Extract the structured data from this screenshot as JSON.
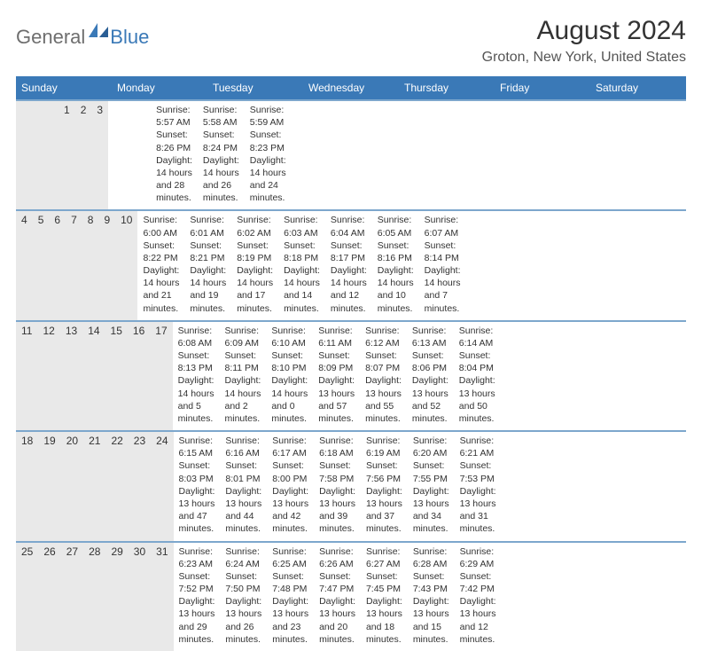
{
  "logo": {
    "text1": "General",
    "text2": "Blue"
  },
  "title": "August 2024",
  "location": "Groton, New York, United States",
  "colors": {
    "header_bg": "#3a79b7",
    "header_text": "#ffffff",
    "daynum_bg": "#e9e9e9",
    "week_border": "#7da7cd",
    "logo_gray": "#6e6e6e",
    "logo_blue": "#3a79b7",
    "page_bg": "#ffffff",
    "body_text": "#333333"
  },
  "typography": {
    "title_fontsize": 30,
    "location_fontsize": 16,
    "weekday_fontsize": 12,
    "daynum_fontsize": 12,
    "content_fontsize": 10.5
  },
  "weekdays": [
    "Sunday",
    "Monday",
    "Tuesday",
    "Wednesday",
    "Thursday",
    "Friday",
    "Saturday"
  ],
  "weeks": [
    [
      {
        "day": "",
        "lines": []
      },
      {
        "day": "",
        "lines": []
      },
      {
        "day": "",
        "lines": []
      },
      {
        "day": "",
        "lines": []
      },
      {
        "day": "1",
        "lines": [
          "Sunrise: 5:57 AM",
          "Sunset: 8:26 PM",
          "Daylight: 14 hours",
          "and 28 minutes."
        ]
      },
      {
        "day": "2",
        "lines": [
          "Sunrise: 5:58 AM",
          "Sunset: 8:24 PM",
          "Daylight: 14 hours",
          "and 26 minutes."
        ]
      },
      {
        "day": "3",
        "lines": [
          "Sunrise: 5:59 AM",
          "Sunset: 8:23 PM",
          "Daylight: 14 hours",
          "and 24 minutes."
        ]
      }
    ],
    [
      {
        "day": "4",
        "lines": [
          "Sunrise: 6:00 AM",
          "Sunset: 8:22 PM",
          "Daylight: 14 hours",
          "and 21 minutes."
        ]
      },
      {
        "day": "5",
        "lines": [
          "Sunrise: 6:01 AM",
          "Sunset: 8:21 PM",
          "Daylight: 14 hours",
          "and 19 minutes."
        ]
      },
      {
        "day": "6",
        "lines": [
          "Sunrise: 6:02 AM",
          "Sunset: 8:19 PM",
          "Daylight: 14 hours",
          "and 17 minutes."
        ]
      },
      {
        "day": "7",
        "lines": [
          "Sunrise: 6:03 AM",
          "Sunset: 8:18 PM",
          "Daylight: 14 hours",
          "and 14 minutes."
        ]
      },
      {
        "day": "8",
        "lines": [
          "Sunrise: 6:04 AM",
          "Sunset: 8:17 PM",
          "Daylight: 14 hours",
          "and 12 minutes."
        ]
      },
      {
        "day": "9",
        "lines": [
          "Sunrise: 6:05 AM",
          "Sunset: 8:16 PM",
          "Daylight: 14 hours",
          "and 10 minutes."
        ]
      },
      {
        "day": "10",
        "lines": [
          "Sunrise: 6:07 AM",
          "Sunset: 8:14 PM",
          "Daylight: 14 hours",
          "and 7 minutes."
        ]
      }
    ],
    [
      {
        "day": "11",
        "lines": [
          "Sunrise: 6:08 AM",
          "Sunset: 8:13 PM",
          "Daylight: 14 hours",
          "and 5 minutes."
        ]
      },
      {
        "day": "12",
        "lines": [
          "Sunrise: 6:09 AM",
          "Sunset: 8:11 PM",
          "Daylight: 14 hours",
          "and 2 minutes."
        ]
      },
      {
        "day": "13",
        "lines": [
          "Sunrise: 6:10 AM",
          "Sunset: 8:10 PM",
          "Daylight: 14 hours",
          "and 0 minutes."
        ]
      },
      {
        "day": "14",
        "lines": [
          "Sunrise: 6:11 AM",
          "Sunset: 8:09 PM",
          "Daylight: 13 hours",
          "and 57 minutes."
        ]
      },
      {
        "day": "15",
        "lines": [
          "Sunrise: 6:12 AM",
          "Sunset: 8:07 PM",
          "Daylight: 13 hours",
          "and 55 minutes."
        ]
      },
      {
        "day": "16",
        "lines": [
          "Sunrise: 6:13 AM",
          "Sunset: 8:06 PM",
          "Daylight: 13 hours",
          "and 52 minutes."
        ]
      },
      {
        "day": "17",
        "lines": [
          "Sunrise: 6:14 AM",
          "Sunset: 8:04 PM",
          "Daylight: 13 hours",
          "and 50 minutes."
        ]
      }
    ],
    [
      {
        "day": "18",
        "lines": [
          "Sunrise: 6:15 AM",
          "Sunset: 8:03 PM",
          "Daylight: 13 hours",
          "and 47 minutes."
        ]
      },
      {
        "day": "19",
        "lines": [
          "Sunrise: 6:16 AM",
          "Sunset: 8:01 PM",
          "Daylight: 13 hours",
          "and 44 minutes."
        ]
      },
      {
        "day": "20",
        "lines": [
          "Sunrise: 6:17 AM",
          "Sunset: 8:00 PM",
          "Daylight: 13 hours",
          "and 42 minutes."
        ]
      },
      {
        "day": "21",
        "lines": [
          "Sunrise: 6:18 AM",
          "Sunset: 7:58 PM",
          "Daylight: 13 hours",
          "and 39 minutes."
        ]
      },
      {
        "day": "22",
        "lines": [
          "Sunrise: 6:19 AM",
          "Sunset: 7:56 PM",
          "Daylight: 13 hours",
          "and 37 minutes."
        ]
      },
      {
        "day": "23",
        "lines": [
          "Sunrise: 6:20 AM",
          "Sunset: 7:55 PM",
          "Daylight: 13 hours",
          "and 34 minutes."
        ]
      },
      {
        "day": "24",
        "lines": [
          "Sunrise: 6:21 AM",
          "Sunset: 7:53 PM",
          "Daylight: 13 hours",
          "and 31 minutes."
        ]
      }
    ],
    [
      {
        "day": "25",
        "lines": [
          "Sunrise: 6:23 AM",
          "Sunset: 7:52 PM",
          "Daylight: 13 hours",
          "and 29 minutes."
        ]
      },
      {
        "day": "26",
        "lines": [
          "Sunrise: 6:24 AM",
          "Sunset: 7:50 PM",
          "Daylight: 13 hours",
          "and 26 minutes."
        ]
      },
      {
        "day": "27",
        "lines": [
          "Sunrise: 6:25 AM",
          "Sunset: 7:48 PM",
          "Daylight: 13 hours",
          "and 23 minutes."
        ]
      },
      {
        "day": "28",
        "lines": [
          "Sunrise: 6:26 AM",
          "Sunset: 7:47 PM",
          "Daylight: 13 hours",
          "and 20 minutes."
        ]
      },
      {
        "day": "29",
        "lines": [
          "Sunrise: 6:27 AM",
          "Sunset: 7:45 PM",
          "Daylight: 13 hours",
          "and 18 minutes."
        ]
      },
      {
        "day": "30",
        "lines": [
          "Sunrise: 6:28 AM",
          "Sunset: 7:43 PM",
          "Daylight: 13 hours",
          "and 15 minutes."
        ]
      },
      {
        "day": "31",
        "lines": [
          "Sunrise: 6:29 AM",
          "Sunset: 7:42 PM",
          "Daylight: 13 hours",
          "and 12 minutes."
        ]
      }
    ]
  ]
}
